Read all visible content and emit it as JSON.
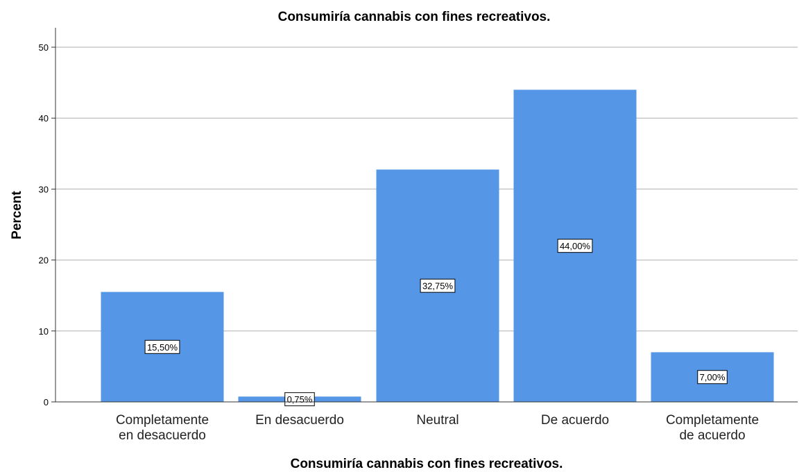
{
  "chart_data": {
    "type": "bar",
    "title": "Consumiría cannabis con fines recreativos.",
    "xlabel": "Consumiría cannabis con fines recreativos.",
    "ylabel": "Percent",
    "categories": [
      [
        "Completamente",
        "en desacuerdo"
      ],
      [
        "En desacuerdo"
      ],
      [
        "Neutral"
      ],
      [
        "De acuerdo"
      ],
      [
        "Completamente",
        "de acuerdo"
      ]
    ],
    "values": [
      15.5,
      0.75,
      32.75,
      44.0,
      7.0
    ],
    "data_labels": [
      "15,50%",
      "0,75%",
      "32,75%",
      "44,00%",
      "7,00%"
    ],
    "ylim": [
      0,
      52
    ],
    "yticks": [
      0,
      10,
      20,
      30,
      40,
      50
    ],
    "grid": true,
    "bar_color": "#5596E6",
    "grid_color": "#C8C8C8"
  }
}
